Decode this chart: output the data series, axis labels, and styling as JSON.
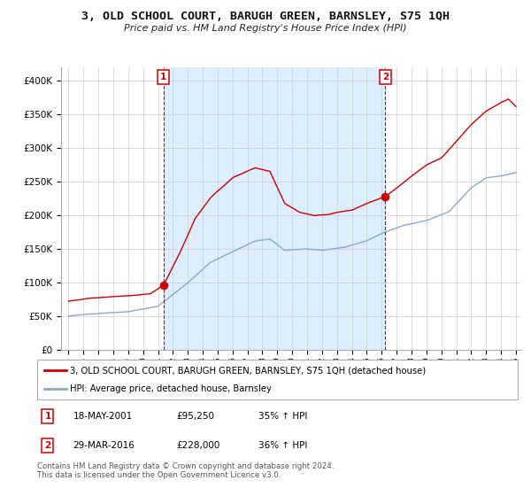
{
  "title": "3, OLD SCHOOL COURT, BARUGH GREEN, BARNSLEY, S75 1QH",
  "subtitle": "Price paid vs. HM Land Registry's House Price Index (HPI)",
  "legend_label_red": "3, OLD SCHOOL COURT, BARUGH GREEN, BARNSLEY, S75 1QH (detached house)",
  "legend_label_blue": "HPI: Average price, detached house, Barnsley",
  "footnote": "Contains HM Land Registry data © Crown copyright and database right 2024.\nThis data is licensed under the Open Government Licence v3.0.",
  "sale1_date": "18-MAY-2001",
  "sale1_price": "£95,250",
  "sale1_hpi": "35% ↑ HPI",
  "sale2_date": "29-MAR-2016",
  "sale2_price": "£228,000",
  "sale2_hpi": "36% ↑ HPI",
  "sale1_x": 2001.38,
  "sale1_y": 95250,
  "sale2_x": 2016.24,
  "sale2_y": 228000,
  "red_color": "#cc0000",
  "blue_color": "#88aacc",
  "shade_color": "#ddeeff",
  "vline_color": "#cc0000",
  "background_color": "#ffffff",
  "grid_color": "#cccccc",
  "ylim": [
    0,
    420000
  ],
  "xlim": [
    1994.5,
    2025.3
  ]
}
